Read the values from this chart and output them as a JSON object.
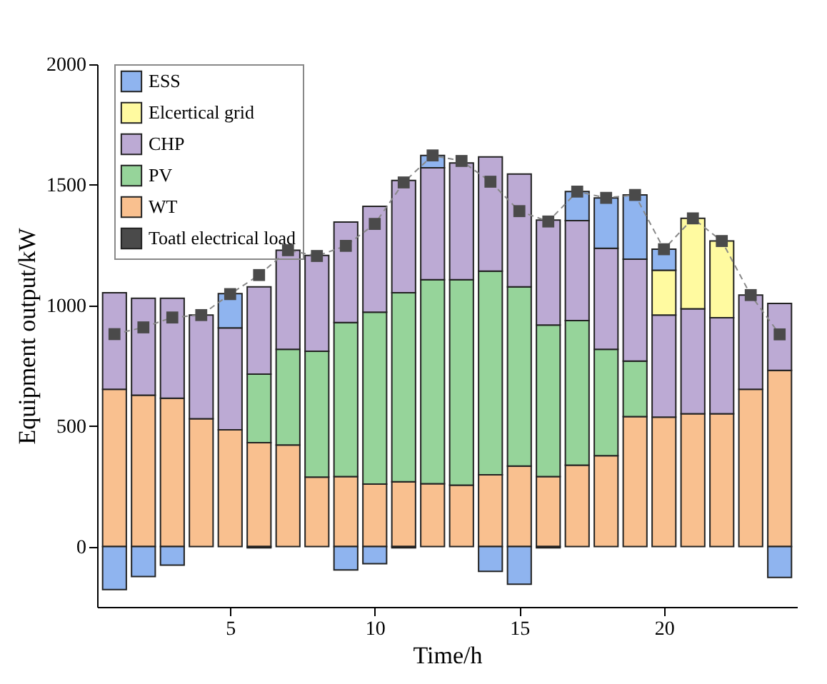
{
  "chart_data": {
    "type": "bar",
    "stacked": true,
    "xlabel": "Time/h",
    "ylabel": "Equipment output/kW",
    "x": [
      1,
      2,
      3,
      4,
      5,
      6,
      7,
      8,
      9,
      10,
      11,
      12,
      13,
      14,
      15,
      16,
      17,
      18,
      19,
      20,
      21,
      22,
      23,
      24
    ],
    "xlim": [
      0.4,
      24.6
    ],
    "xticks": [
      5,
      10,
      15,
      20
    ],
    "ylim": [
      -250,
      2000
    ],
    "yticks": [
      0,
      500,
      1000,
      1500,
      2000
    ],
    "grid": false,
    "legend": "top left",
    "marker": "square",
    "line_style": "dashed",
    "series": [
      {
        "name": "WT",
        "color": "#f9c08f",
        "values": [
          652,
          628,
          615,
          530,
          484,
          431,
          421,
          288,
          290,
          259,
          269,
          261,
          255,
          298,
          334,
          290,
          338,
          377,
          539,
          537,
          551,
          551,
          652,
          731
        ]
      },
      {
        "name": "PV",
        "color": "#96d49a",
        "values": [
          null,
          null,
          null,
          null,
          null,
          284,
          397,
          522,
          639,
          713,
          784,
          846,
          852,
          844,
          743,
          629,
          599,
          441,
          230,
          null,
          null,
          null,
          null,
          null
        ]
      },
      {
        "name": "CHP",
        "color": "#bcaad4",
        "values": [
          401,
          402,
          415,
          430,
          423,
          362,
          411,
          397,
          417,
          439,
          465,
          464,
          484,
          474,
          468,
          435,
          415,
          419,
          423,
          423,
          435,
          398,
          391,
          277
        ]
      },
      {
        "name": "Elcertical grid",
        "color": "#fffaa0",
        "values": [
          null,
          null,
          null,
          null,
          null,
          null,
          null,
          null,
          null,
          null,
          null,
          null,
          null,
          null,
          null,
          null,
          null,
          null,
          null,
          186,
          375,
          318,
          null,
          null
        ]
      },
      {
        "name": "ESS",
        "color": "#8fb4ef",
        "values": [
          -178,
          -124,
          -77,
          null,
          142,
          -5,
          null,
          null,
          -97,
          -71,
          -5,
          51,
          null,
          -103,
          -156,
          -5,
          120,
          209,
          266,
          87,
          null,
          null,
          null,
          -128
        ]
      },
      {
        "name": "Toatl electrical load",
        "type": "line",
        "color": "#4a4a4a",
        "values": [
          881,
          909,
          950,
          960,
          1047,
          1126,
          1229,
          1205,
          1247,
          1338,
          1510,
          1622,
          1599,
          1513,
          1391,
          1348,
          1472,
          1446,
          1458,
          1233,
          1361,
          1267,
          1043,
          880
        ]
      }
    ]
  }
}
